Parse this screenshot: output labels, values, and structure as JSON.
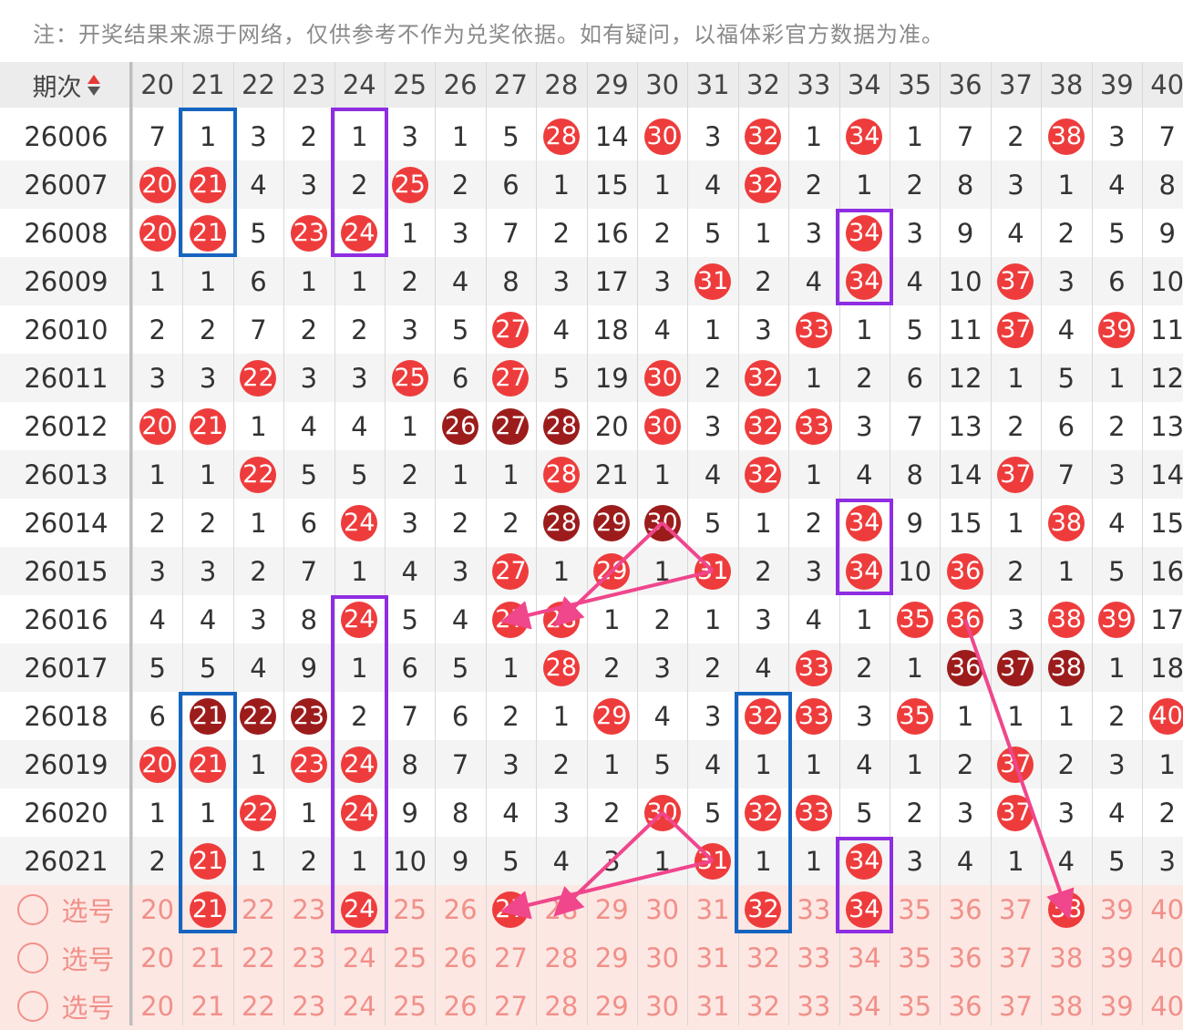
{
  "notice": "注：开奖结果来源于网络，仅供参考不作为兑奖依据。如有疑问，以福体彩官方数据为准。",
  "header": {
    "issue_label": "期次",
    "numbers": [
      "20",
      "21",
      "22",
      "23",
      "24",
      "25",
      "26",
      "27",
      "28",
      "29",
      "30",
      "31",
      "32",
      "33",
      "34",
      "35",
      "36",
      "37",
      "38",
      "39",
      "40"
    ]
  },
  "rows": [
    {
      "issue": "26006",
      "cells": [
        "7",
        "1",
        "3",
        "2",
        "1",
        "3",
        "1",
        "5",
        "28",
        "14",
        "30",
        "3",
        "32",
        "1",
        "34",
        "1",
        "7",
        "2",
        "38",
        "3",
        "7"
      ],
      "hits": [
        0,
        0,
        0,
        0,
        0,
        0,
        0,
        0,
        1,
        0,
        1,
        0,
        1,
        0,
        1,
        0,
        0,
        0,
        1,
        0,
        0
      ]
    },
    {
      "issue": "26007",
      "cells": [
        "20",
        "21",
        "4",
        "3",
        "2",
        "25",
        "2",
        "6",
        "1",
        "15",
        "1",
        "4",
        "32",
        "2",
        "1",
        "2",
        "8",
        "3",
        "1",
        "4",
        "8"
      ],
      "hits": [
        1,
        1,
        0,
        0,
        0,
        1,
        0,
        0,
        0,
        0,
        0,
        0,
        1,
        0,
        0,
        0,
        0,
        0,
        0,
        0,
        0
      ]
    },
    {
      "issue": "26008",
      "cells": [
        "20",
        "21",
        "5",
        "23",
        "24",
        "1",
        "3",
        "7",
        "2",
        "16",
        "2",
        "5",
        "1",
        "3",
        "34",
        "3",
        "9",
        "4",
        "2",
        "5",
        "9"
      ],
      "hits": [
        1,
        1,
        0,
        1,
        1,
        0,
        0,
        0,
        0,
        0,
        0,
        0,
        0,
        0,
        1,
        0,
        0,
        0,
        0,
        0,
        0
      ]
    },
    {
      "issue": "26009",
      "cells": [
        "1",
        "1",
        "6",
        "1",
        "1",
        "2",
        "4",
        "8",
        "3",
        "17",
        "3",
        "31",
        "2",
        "4",
        "34",
        "4",
        "10",
        "37",
        "3",
        "6",
        "10"
      ],
      "hits": [
        0,
        0,
        0,
        0,
        0,
        0,
        0,
        0,
        0,
        0,
        0,
        1,
        0,
        0,
        1,
        0,
        0,
        1,
        0,
        0,
        0
      ]
    },
    {
      "issue": "26010",
      "cells": [
        "2",
        "2",
        "7",
        "2",
        "2",
        "3",
        "5",
        "27",
        "4",
        "18",
        "4",
        "1",
        "3",
        "33",
        "1",
        "5",
        "11",
        "37",
        "4",
        "39",
        "11"
      ],
      "hits": [
        0,
        0,
        0,
        0,
        0,
        0,
        0,
        1,
        0,
        0,
        0,
        0,
        0,
        1,
        0,
        0,
        0,
        1,
        0,
        1,
        0
      ]
    },
    {
      "issue": "26011",
      "cells": [
        "3",
        "3",
        "22",
        "3",
        "3",
        "25",
        "6",
        "27",
        "5",
        "19",
        "30",
        "2",
        "32",
        "1",
        "2",
        "6",
        "12",
        "1",
        "5",
        "1",
        "12"
      ],
      "hits": [
        0,
        0,
        1,
        0,
        0,
        1,
        0,
        1,
        0,
        0,
        1,
        0,
        1,
        0,
        0,
        0,
        0,
        0,
        0,
        0,
        0
      ]
    },
    {
      "issue": "26012",
      "cells": [
        "20",
        "21",
        "1",
        "4",
        "4",
        "1",
        "26",
        "27",
        "28",
        "20",
        "30",
        "3",
        "32",
        "33",
        "3",
        "7",
        "13",
        "2",
        "6",
        "2",
        "13"
      ],
      "hits": [
        1,
        1,
        0,
        0,
        0,
        0,
        2,
        2,
        2,
        0,
        1,
        0,
        1,
        1,
        0,
        0,
        0,
        0,
        0,
        0,
        0
      ]
    },
    {
      "issue": "26013",
      "cells": [
        "1",
        "1",
        "22",
        "5",
        "5",
        "2",
        "1",
        "1",
        "28",
        "21",
        "1",
        "4",
        "32",
        "1",
        "4",
        "8",
        "14",
        "37",
        "7",
        "3",
        "14"
      ],
      "hits": [
        0,
        0,
        1,
        0,
        0,
        0,
        0,
        0,
        1,
        0,
        0,
        0,
        1,
        0,
        0,
        0,
        0,
        1,
        0,
        0,
        0
      ]
    },
    {
      "issue": "26014",
      "cells": [
        "2",
        "2",
        "1",
        "6",
        "24",
        "3",
        "2",
        "2",
        "28",
        "29",
        "30",
        "5",
        "1",
        "2",
        "34",
        "9",
        "15",
        "1",
        "38",
        "4",
        "15"
      ],
      "hits": [
        0,
        0,
        0,
        0,
        1,
        0,
        0,
        0,
        2,
        2,
        2,
        0,
        0,
        0,
        1,
        0,
        0,
        0,
        1,
        0,
        0
      ]
    },
    {
      "issue": "26015",
      "cells": [
        "3",
        "3",
        "2",
        "7",
        "1",
        "4",
        "3",
        "27",
        "1",
        "29",
        "1",
        "31",
        "2",
        "3",
        "34",
        "10",
        "36",
        "2",
        "1",
        "5",
        "16"
      ],
      "hits": [
        0,
        0,
        0,
        0,
        0,
        0,
        0,
        1,
        0,
        1,
        0,
        1,
        0,
        0,
        1,
        0,
        1,
        0,
        0,
        0,
        0
      ]
    },
    {
      "issue": "26016",
      "cells": [
        "4",
        "4",
        "3",
        "8",
        "24",
        "5",
        "4",
        "27",
        "28",
        "1",
        "2",
        "1",
        "3",
        "4",
        "1",
        "35",
        "36",
        "3",
        "38",
        "39",
        "17"
      ],
      "hits": [
        0,
        0,
        0,
        0,
        1,
        0,
        0,
        1,
        1,
        0,
        0,
        0,
        0,
        0,
        0,
        1,
        1,
        0,
        1,
        1,
        0
      ]
    },
    {
      "issue": "26017",
      "cells": [
        "5",
        "5",
        "4",
        "9",
        "1",
        "6",
        "5",
        "1",
        "28",
        "2",
        "3",
        "2",
        "4",
        "33",
        "2",
        "1",
        "36",
        "37",
        "38",
        "1",
        "18"
      ],
      "hits": [
        0,
        0,
        0,
        0,
        0,
        0,
        0,
        0,
        1,
        0,
        0,
        0,
        0,
        1,
        0,
        0,
        2,
        2,
        2,
        0,
        0
      ]
    },
    {
      "issue": "26018",
      "cells": [
        "6",
        "21",
        "22",
        "23",
        "2",
        "7",
        "6",
        "2",
        "1",
        "29",
        "4",
        "3",
        "32",
        "33",
        "3",
        "35",
        "1",
        "1",
        "1",
        "2",
        "40"
      ],
      "hits": [
        0,
        2,
        2,
        2,
        0,
        0,
        0,
        0,
        0,
        1,
        0,
        0,
        1,
        1,
        0,
        1,
        0,
        0,
        0,
        0,
        1
      ]
    },
    {
      "issue": "26019",
      "cells": [
        "20",
        "21",
        "1",
        "23",
        "24",
        "8",
        "7",
        "3",
        "2",
        "1",
        "5",
        "4",
        "1",
        "1",
        "4",
        "1",
        "2",
        "37",
        "2",
        "3",
        "1"
      ],
      "hits": [
        1,
        1,
        0,
        1,
        1,
        0,
        0,
        0,
        0,
        0,
        0,
        0,
        0,
        0,
        0,
        0,
        0,
        1,
        0,
        0,
        0
      ]
    },
    {
      "issue": "26020",
      "cells": [
        "1",
        "1",
        "22",
        "1",
        "24",
        "9",
        "8",
        "4",
        "3",
        "2",
        "30",
        "5",
        "32",
        "33",
        "5",
        "2",
        "3",
        "37",
        "3",
        "4",
        "2"
      ],
      "hits": [
        0,
        0,
        1,
        0,
        1,
        0,
        0,
        0,
        0,
        0,
        1,
        0,
        1,
        1,
        0,
        0,
        0,
        1,
        0,
        0,
        0
      ]
    },
    {
      "issue": "26021",
      "cells": [
        "2",
        "21",
        "1",
        "2",
        "1",
        "10",
        "9",
        "5",
        "4",
        "3",
        "1",
        "31",
        "1",
        "1",
        "34",
        "3",
        "4",
        "1",
        "4",
        "5",
        "3"
      ],
      "hits": [
        0,
        1,
        0,
        0,
        0,
        0,
        0,
        0,
        0,
        0,
        0,
        1,
        0,
        0,
        1,
        0,
        0,
        0,
        0,
        0,
        0
      ]
    }
  ],
  "pick_rows": [
    {
      "label": "选号",
      "hits": [
        0,
        1,
        0,
        0,
        1,
        0,
        0,
        1,
        0,
        0,
        0,
        0,
        1,
        0,
        1,
        0,
        0,
        0,
        1,
        0,
        0
      ]
    },
    {
      "label": "选号",
      "hits": [
        0,
        0,
        0,
        0,
        0,
        0,
        0,
        0,
        0,
        0,
        0,
        0,
        0,
        0,
        0,
        0,
        0,
        0,
        0,
        0,
        0
      ]
    },
    {
      "label": "选号",
      "hits": [
        0,
        0,
        0,
        0,
        0,
        0,
        0,
        0,
        0,
        0,
        0,
        0,
        0,
        0,
        0,
        0,
        0,
        0,
        0,
        0,
        0
      ]
    }
  ],
  "colors": {
    "ball_red": "#ee3c3c",
    "ball_dark": "#9c1c1c",
    "box_blue": "#1565c0",
    "box_purple": "#8e2de2",
    "arrow": "#f0468c"
  }
}
